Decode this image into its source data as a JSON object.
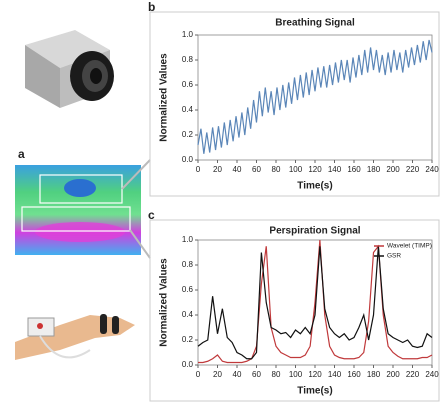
{
  "panel_labels": [
    "a",
    "b",
    "c"
  ],
  "chart_data": [
    {
      "type": "line",
      "title": "Breathing Signal",
      "xlabel": "Time(s)",
      "ylabel": "Normalized Values",
      "legend": null,
      "x": [
        0,
        3,
        6,
        9,
        12,
        15,
        18,
        21,
        24,
        27,
        30,
        33,
        36,
        39,
        42,
        45,
        48,
        51,
        54,
        57,
        60,
        63,
        66,
        69,
        72,
        75,
        78,
        81,
        84,
        87,
        90,
        93,
        96,
        99,
        102,
        105,
        108,
        111,
        114,
        117,
        120,
        123,
        126,
        129,
        132,
        135,
        138,
        141,
        144,
        147,
        150,
        153,
        156,
        159,
        162,
        165,
        168,
        171,
        174,
        177,
        180,
        183,
        186,
        189,
        192,
        195,
        198,
        201,
        204,
        207,
        210,
        213,
        216,
        219,
        222,
        225,
        228,
        231,
        234,
        237,
        240
      ],
      "series": [
        {
          "color": "#5b86b8",
          "values": [
            0.12,
            0.25,
            0.05,
            0.22,
            0.06,
            0.26,
            0.08,
            0.27,
            0.1,
            0.3,
            0.12,
            0.32,
            0.15,
            0.35,
            0.18,
            0.38,
            0.2,
            0.42,
            0.25,
            0.48,
            0.3,
            0.55,
            0.35,
            0.58,
            0.38,
            0.55,
            0.36,
            0.58,
            0.4,
            0.6,
            0.42,
            0.62,
            0.45,
            0.66,
            0.48,
            0.68,
            0.5,
            0.7,
            0.52,
            0.72,
            0.55,
            0.74,
            0.58,
            0.75,
            0.58,
            0.76,
            0.6,
            0.78,
            0.62,
            0.8,
            0.64,
            0.8,
            0.62,
            0.82,
            0.66,
            0.84,
            0.68,
            0.88,
            0.7,
            0.9,
            0.72,
            0.88,
            0.7,
            0.84,
            0.68,
            0.86,
            0.7,
            0.88,
            0.72,
            0.86,
            0.7,
            0.88,
            0.74,
            0.9,
            0.76,
            0.92,
            0.78,
            0.95,
            0.8,
            0.96,
            0.86
          ]
        }
      ],
      "xlim": [
        0,
        240
      ],
      "xticks": [
        0,
        20,
        40,
        60,
        80,
        100,
        120,
        140,
        160,
        180,
        200,
        220,
        240
      ],
      "ylim": [
        0,
        1
      ],
      "yticks": [
        {
          "value": 0,
          "label": "0.0"
        },
        0.2,
        0.4,
        0.6,
        0.8,
        {
          "value": 1,
          "label": "1.0"
        }
      ]
    },
    {
      "type": "line",
      "title": "Perspiration Signal",
      "xlabel": "Time(s)",
      "ylabel": "Normalized Values",
      "legend": "upper right",
      "x": [
        0,
        5,
        10,
        15,
        20,
        25,
        30,
        35,
        40,
        45,
        50,
        55,
        60,
        65,
        70,
        75,
        80,
        85,
        90,
        95,
        100,
        105,
        110,
        115,
        120,
        125,
        130,
        135,
        140,
        145,
        150,
        155,
        160,
        165,
        170,
        175,
        180,
        185,
        190,
        195,
        200,
        205,
        210,
        215,
        220,
        225,
        230,
        235,
        240
      ],
      "series": [
        {
          "name": "Wavelet (TIMP)",
          "color": "#c0393b",
          "values": [
            0.02,
            0.02,
            0.03,
            0.05,
            0.08,
            0.03,
            0.02,
            0.02,
            0.02,
            0.02,
            0.03,
            0.05,
            0.15,
            0.65,
            0.95,
            0.3,
            0.15,
            0.1,
            0.08,
            0.06,
            0.06,
            0.06,
            0.08,
            0.15,
            0.5,
            1.0,
            0.4,
            0.15,
            0.08,
            0.06,
            0.05,
            0.05,
            0.05,
            0.06,
            0.1,
            0.35,
            0.9,
            0.95,
            0.4,
            0.15,
            0.1,
            0.07,
            0.05,
            0.05,
            0.05,
            0.05,
            0.06,
            0.06,
            0.08
          ]
        },
        {
          "name": "GSR",
          "color": "#111111",
          "values": [
            0.15,
            0.18,
            0.2,
            0.55,
            0.25,
            0.45,
            0.22,
            0.18,
            0.1,
            0.08,
            0.05,
            0.05,
            0.1,
            0.9,
            0.5,
            0.3,
            0.28,
            0.25,
            0.26,
            0.22,
            0.28,
            0.25,
            0.3,
            0.25,
            0.4,
            0.95,
            0.45,
            0.3,
            0.25,
            0.22,
            0.25,
            0.2,
            0.22,
            0.3,
            0.4,
            0.2,
            0.4,
            0.95,
            0.45,
            0.25,
            0.22,
            0.2,
            0.18,
            0.2,
            0.15,
            0.14,
            0.15,
            0.25,
            0.22
          ]
        }
      ],
      "xlim": [
        0,
        240
      ],
      "xticks": [
        0,
        20,
        40,
        60,
        80,
        100,
        120,
        140,
        160,
        180,
        200,
        220,
        240
      ],
      "ylim": [
        0,
        1
      ],
      "yticks": [
        {
          "value": 0,
          "label": "0.0"
        },
        0.2,
        0.4,
        0.6,
        0.8,
        {
          "value": 1,
          "label": "1.0"
        }
      ]
    }
  ]
}
